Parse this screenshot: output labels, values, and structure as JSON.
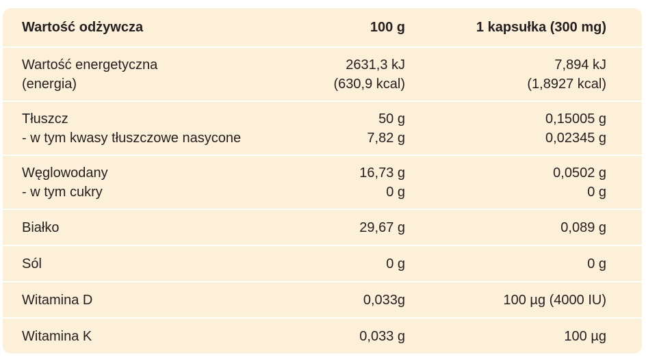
{
  "table": {
    "header": [
      "Wartość odżywcza",
      "100 g",
      "1 kapsułka (300 mg)"
    ],
    "rows": [
      [
        [
          "Wartość energetyczna",
          "(energia)"
        ],
        [
          "2631,3 kJ",
          "(630,9 kcal)"
        ],
        [
          "7,894 kJ",
          "(1,8927 kcal)"
        ]
      ],
      [
        [
          "Tłuszcz",
          "- w tym kwasy tłuszczowe nasycone"
        ],
        [
          "50 g",
          "7,82 g"
        ],
        [
          "0,15005 g",
          "0,02345 g"
        ]
      ],
      [
        [
          "Węglowodany",
          "- w tym cukry"
        ],
        [
          "16,73 g",
          "0 g"
        ],
        [
          "0,0502 g",
          "0 g"
        ]
      ],
      [
        [
          "Białko"
        ],
        [
          "29,67 g"
        ],
        [
          "0,089 g"
        ]
      ],
      [
        [
          "Sól"
        ],
        [
          "0 g"
        ],
        [
          "0 g"
        ]
      ],
      [
        [
          "Witamina D"
        ],
        [
          "0,033g"
        ],
        [
          "100 µg (4000 IU)"
        ]
      ],
      [
        [
          "Witamina K"
        ],
        [
          "0,033 g"
        ],
        [
          "100 µg"
        ]
      ]
    ]
  }
}
